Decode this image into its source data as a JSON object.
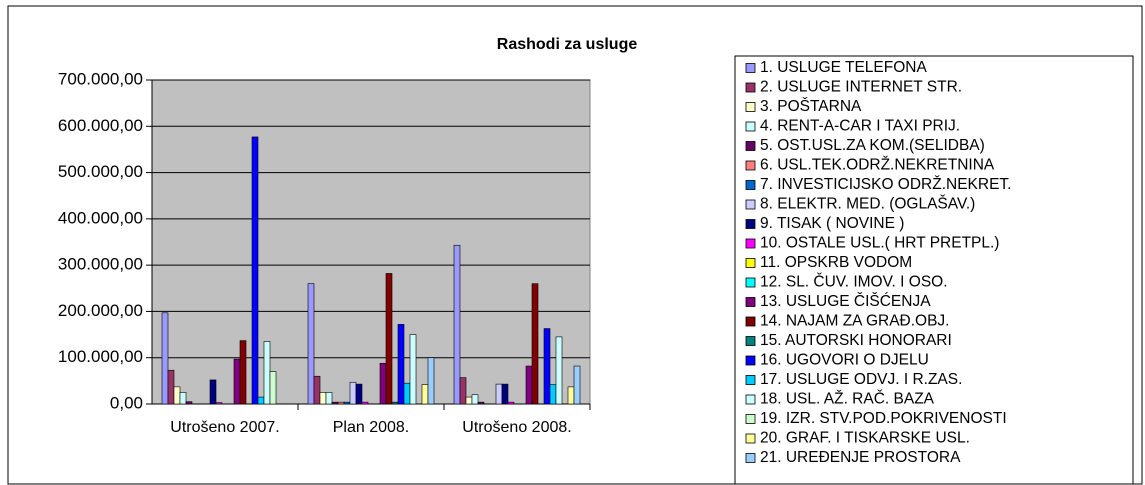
{
  "chart_data": {
    "type": "bar",
    "title": "Rashodi za usluge",
    "categories": [
      "Utrošeno 2007.",
      "Plan 2008.",
      "Utrošeno 2008."
    ],
    "ylim": [
      0,
      700000
    ],
    "yticks": [
      {
        "value": 0,
        "label": "0,00"
      },
      {
        "value": 100000,
        "label": "100.000,00"
      },
      {
        "value": 200000,
        "label": "200.000,00"
      },
      {
        "value": 300000,
        "label": "300.000,00"
      },
      {
        "value": 400000,
        "label": "400.000,00"
      },
      {
        "value": 500000,
        "label": "500.000,00"
      },
      {
        "value": 600000,
        "label": "600.000,00"
      },
      {
        "value": 700000,
        "label": "700.000,00"
      }
    ],
    "legend": "right",
    "series": [
      {
        "name": "1. USLUGE TELEFONA",
        "color": "#9999ff",
        "values": [
          197000,
          260000,
          343000
        ]
      },
      {
        "name": "2. USLUGE INTERNET STR.",
        "color": "#993366",
        "values": [
          73000,
          60000,
          57000
        ]
      },
      {
        "name": "3. POŠTARNA",
        "color": "#ffffcc",
        "values": [
          37000,
          25000,
          15000
        ]
      },
      {
        "name": "4. RENT-A-CAR I TAXI PRIJ.",
        "color": "#ccffff",
        "values": [
          25000,
          25000,
          20000
        ]
      },
      {
        "name": "5. OST.USL.ZA KOM.(SELIDBA)",
        "color": "#660066",
        "values": [
          5000,
          4000,
          4000
        ]
      },
      {
        "name": "6. USL.TEK.ODRŽ.NEKRETNINA",
        "color": "#ff8080",
        "values": [
          0,
          4000,
          0
        ]
      },
      {
        "name": "7. INVESTICIJSKO ODRŽ.NEKRET.",
        "color": "#0066cc",
        "values": [
          0,
          4000,
          0
        ]
      },
      {
        "name": "8. ELEKTR. MED. (OGLAŠAV.)",
        "color": "#ccccff",
        "values": [
          0,
          47000,
          43000
        ]
      },
      {
        "name": "9. TISAK ( NOVINE )",
        "color": "#000080",
        "values": [
          52000,
          43000,
          43000
        ]
      },
      {
        "name": "10. OSTALE USL.( HRT PRETPL.)",
        "color": "#ff00ff",
        "values": [
          3000,
          4000,
          4000
        ]
      },
      {
        "name": "11. OPSKRB VODOM",
        "color": "#ffff00",
        "values": [
          0,
          0,
          0
        ]
      },
      {
        "name": "12. SL. ČUV. IMOV. I OSO.",
        "color": "#00ffff",
        "values": [
          0,
          0,
          0
        ]
      },
      {
        "name": "13. USLUGE ČIŠĆENJA",
        "color": "#800080",
        "values": [
          97000,
          88000,
          82000
        ]
      },
      {
        "name": "14. NAJAM ZA GRAĐ.OBJ.",
        "color": "#800000",
        "values": [
          137000,
          282000,
          260000
        ]
      },
      {
        "name": "15. AUTORSKI HONORARI",
        "color": "#008080",
        "values": [
          0,
          4000,
          0
        ]
      },
      {
        "name": "16. UGOVORI O DJELU",
        "color": "#0000ff",
        "values": [
          577000,
          172000,
          163000
        ]
      },
      {
        "name": "17. USLUGE ODVJ. I R.ZAS.",
        "color": "#00ccff",
        "values": [
          15000,
          45000,
          42000
        ]
      },
      {
        "name": "18. USL. AŽ. RAČ. BAZA",
        "color": "#ccffff",
        "values": [
          135000,
          150000,
          145000
        ]
      },
      {
        "name": "19. IZR. STV.POD.POKRIVENOSTI",
        "color": "#ccffcc",
        "values": [
          70000,
          0,
          0
        ]
      },
      {
        "name": "20. GRAF. I TISKARSKE USL.",
        "color": "#ffff99",
        "values": [
          0,
          42000,
          37000
        ]
      },
      {
        "name": "21. UREĐENJE PROSTORA",
        "color": "#99ccff",
        "values": [
          0,
          100000,
          82000
        ]
      }
    ]
  }
}
